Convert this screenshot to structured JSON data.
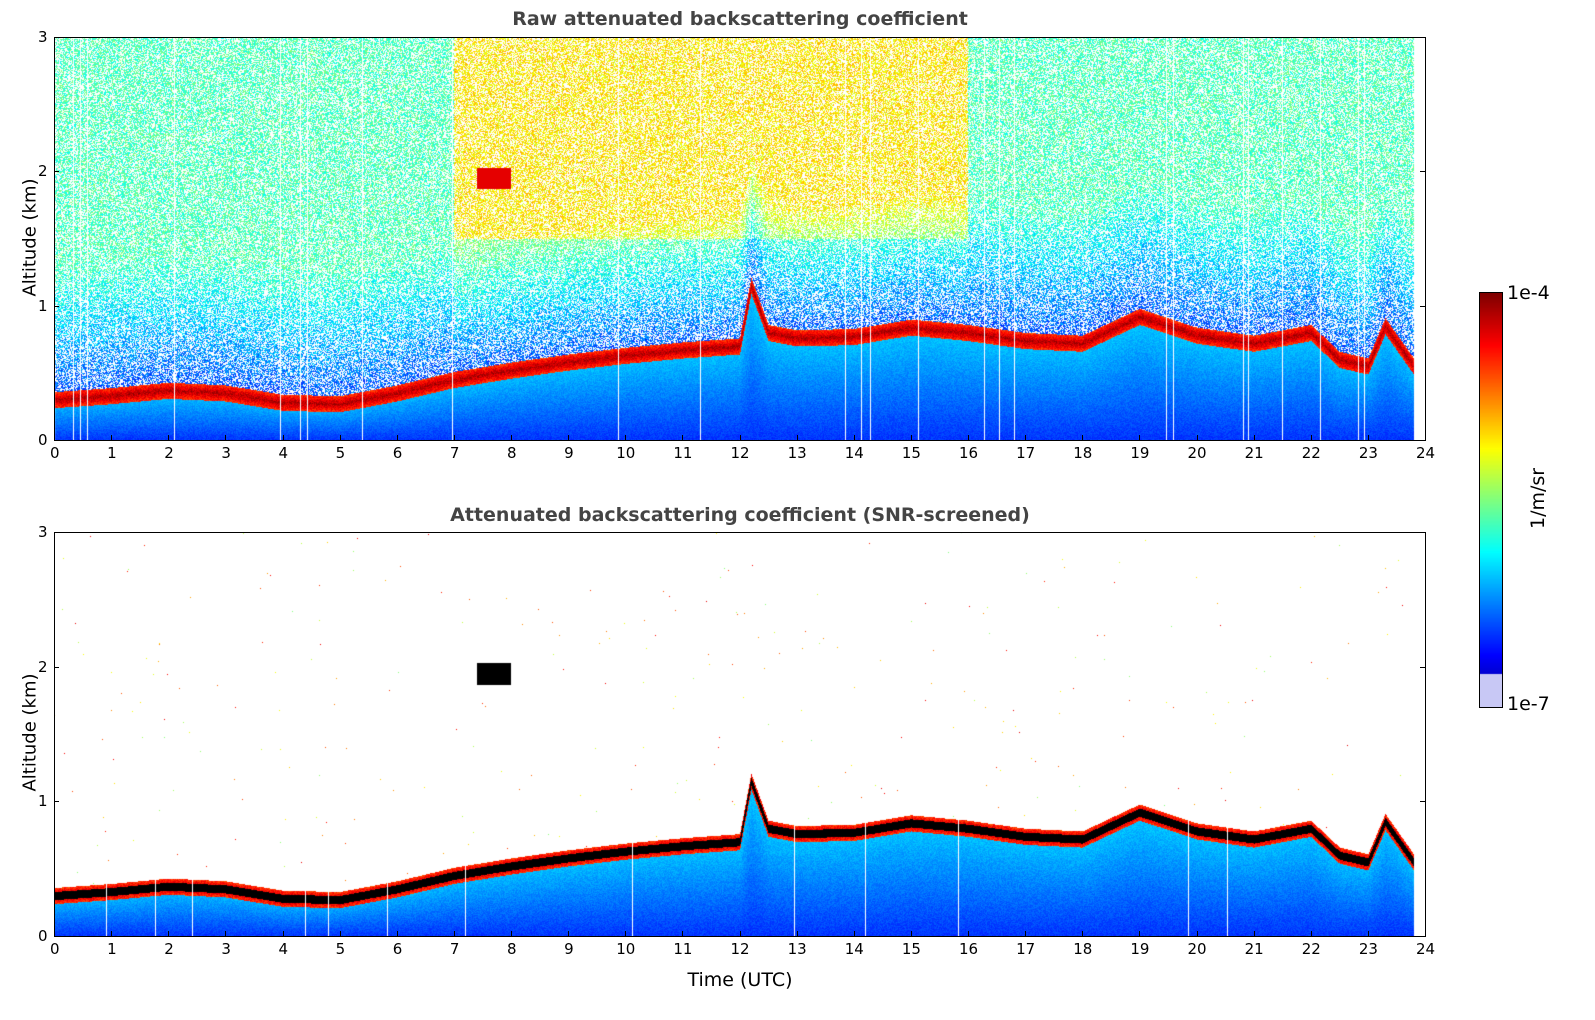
{
  "chart_data": [
    {
      "type": "heatmap",
      "title": "Raw attenuated backscattering coefficient",
      "xlabel": "",
      "ylabel": "Altitude (km)",
      "xlim": [
        0,
        24
      ],
      "ylim": [
        0,
        3
      ],
      "xticks": [
        "0",
        "1",
        "2",
        "3",
        "4",
        "5",
        "6",
        "7",
        "8",
        "9",
        "10",
        "11",
        "12",
        "13",
        "14",
        "15",
        "16",
        "17",
        "18",
        "19",
        "20",
        "21",
        "22",
        "23",
        "24"
      ],
      "yticks": [
        "0",
        "1",
        "2",
        "3"
      ],
      "aerosol_layer_top_km": {
        "time": [
          0,
          1,
          2,
          3,
          4,
          5,
          6,
          7,
          8,
          9,
          10,
          11,
          12,
          12.2,
          12.5,
          13,
          14,
          15,
          16,
          17,
          18,
          19,
          19.5,
          20,
          21,
          22,
          22.5,
          23,
          23.3,
          23.8
        ],
        "height": [
          0.3,
          0.33,
          0.37,
          0.35,
          0.28,
          0.27,
          0.35,
          0.45,
          0.52,
          0.58,
          0.63,
          0.67,
          0.7,
          1.15,
          0.8,
          0.76,
          0.77,
          0.84,
          0.8,
          0.74,
          0.72,
          0.92,
          0.85,
          0.78,
          0.72,
          0.8,
          0.6,
          0.55,
          0.85,
          0.55
        ]
      },
      "elevated_layer": {
        "time": [
          7.4,
          8.0
        ],
        "height_km": 1.95
      },
      "data_end_time": 23.8
    },
    {
      "type": "heatmap",
      "title": "Attenuated backscattering coefficient (SNR-screened)",
      "xlabel": "Time (UTC)",
      "ylabel": "Altitude (km)",
      "xlim": [
        0,
        24
      ],
      "ylim": [
        0,
        3
      ],
      "xticks": [
        "0",
        "1",
        "2",
        "3",
        "4",
        "5",
        "6",
        "7",
        "8",
        "9",
        "10",
        "11",
        "12",
        "13",
        "14",
        "15",
        "16",
        "17",
        "18",
        "19",
        "20",
        "21",
        "22",
        "23",
        "24"
      ],
      "yticks": [
        "0",
        "1",
        "2",
        "3"
      ]
    }
  ],
  "colorbar": {
    "max_label": "1e-4",
    "min_label": "1e-7",
    "unit": "1/m/sr",
    "scale": "log",
    "colormap": "jet"
  }
}
